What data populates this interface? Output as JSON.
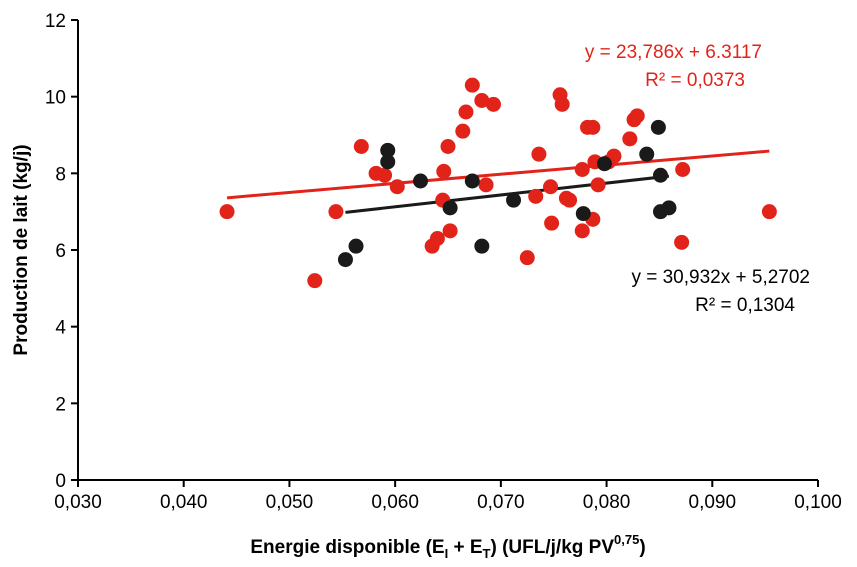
{
  "chart_data": {
    "type": "scatter",
    "xlabel": "Energie disponible (E",
    "xlabel_sub1": "I",
    "xlabel_plus": " + E",
    "xlabel_sub2": "T",
    "xlabel_rest": ") (UFL/j/kg PV",
    "xlabel_sup": "0,75",
    "xlabel_end": ")",
    "ylabel": "Production de lait (kg/j)",
    "xlim": [
      0.03,
      0.1
    ],
    "ylim": [
      0,
      12
    ],
    "x_ticks": [
      "0,030",
      "0,040",
      "0,050",
      "0,060",
      "0,070",
      "0,080",
      "0,090",
      "0,100"
    ],
    "x_tick_values": [
      0.03,
      0.04,
      0.05,
      0.06,
      0.07,
      0.08,
      0.09,
      0.1
    ],
    "y_ticks": [
      "0",
      "2",
      "4",
      "6",
      "8",
      "10",
      "12"
    ],
    "y_tick_values": [
      0,
      2,
      4,
      6,
      8,
      10,
      12
    ],
    "grid": false,
    "series": [
      {
        "color": "#e2231a",
        "points": [
          [
            0.0441,
            7.0
          ],
          [
            0.0524,
            5.2
          ],
          [
            0.0544,
            7.0
          ],
          [
            0.0568,
            8.7
          ],
          [
            0.0582,
            8.0
          ],
          [
            0.059,
            7.95
          ],
          [
            0.0602,
            7.65
          ],
          [
            0.0635,
            6.1
          ],
          [
            0.064,
            6.3
          ],
          [
            0.0645,
            7.3
          ],
          [
            0.0646,
            8.05
          ],
          [
            0.065,
            8.7
          ],
          [
            0.0652,
            6.5
          ],
          [
            0.0664,
            9.1
          ],
          [
            0.0667,
            9.6
          ],
          [
            0.0673,
            10.3
          ],
          [
            0.0682,
            9.9
          ],
          [
            0.0686,
            7.7
          ],
          [
            0.0693,
            9.8
          ],
          [
            0.0725,
            5.8
          ],
          [
            0.0733,
            7.4
          ],
          [
            0.0736,
            8.5
          ],
          [
            0.0747,
            7.65
          ],
          [
            0.0748,
            6.7
          ],
          [
            0.0756,
            10.05
          ],
          [
            0.0758,
            9.8
          ],
          [
            0.0762,
            7.35
          ],
          [
            0.0765,
            7.3
          ],
          [
            0.0777,
            8.1
          ],
          [
            0.0777,
            6.5
          ],
          [
            0.0782,
            9.2
          ],
          [
            0.0787,
            9.2
          ],
          [
            0.0787,
            6.8
          ],
          [
            0.0789,
            8.3
          ],
          [
            0.0792,
            7.7
          ],
          [
            0.0802,
            8.3
          ],
          [
            0.0807,
            8.45
          ],
          [
            0.0822,
            8.9
          ],
          [
            0.0826,
            9.4
          ],
          [
            0.0829,
            9.5
          ],
          [
            0.0872,
            8.1
          ],
          [
            0.0871,
            6.2
          ],
          [
            0.0954,
            7.0
          ]
        ],
        "trendline": {
          "x": [
            0.0441,
            0.0954
          ],
          "equation": "y = 23,786x + 6.3117",
          "r2": "R² = 0,0373"
        }
      },
      {
        "color": "#1a1a1a",
        "points": [
          [
            0.0553,
            5.75
          ],
          [
            0.0563,
            6.1
          ],
          [
            0.0593,
            8.6
          ],
          [
            0.0593,
            8.3
          ],
          [
            0.0624,
            7.8
          ],
          [
            0.0652,
            7.1
          ],
          [
            0.0673,
            7.8
          ],
          [
            0.0682,
            6.1
          ],
          [
            0.0712,
            7.3
          ],
          [
            0.0778,
            6.95
          ],
          [
            0.0798,
            8.25
          ],
          [
            0.0838,
            8.5
          ],
          [
            0.0849,
            9.2
          ],
          [
            0.0851,
            7.95
          ],
          [
            0.0851,
            7.0
          ],
          [
            0.0859,
            7.1
          ]
        ],
        "trendline": {
          "x": [
            0.0553,
            0.0859
          ],
          "equation": "y = 30,932x + 5,2702",
          "r2": "R² = 0,1304"
        }
      }
    ]
  }
}
